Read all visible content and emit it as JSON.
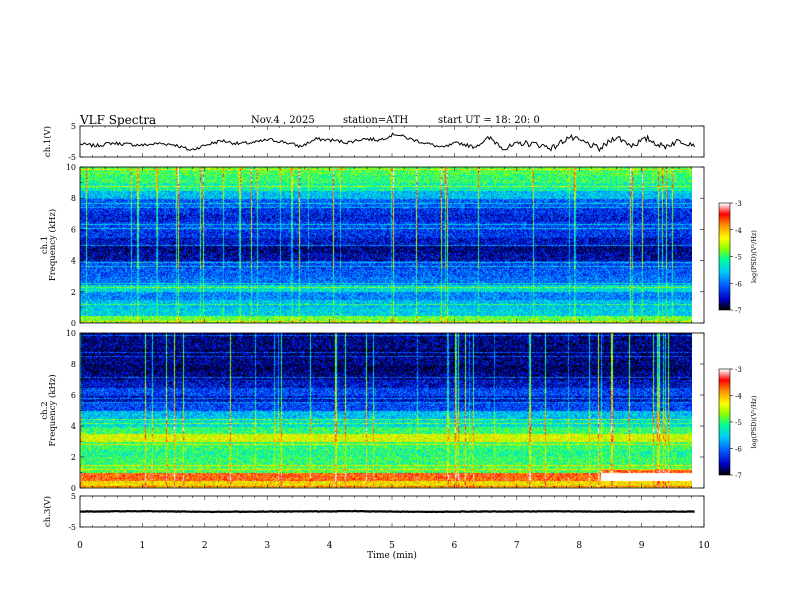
{
  "header": {
    "title": "VLF  Spectra",
    "date": "Nov.4  , 2025",
    "station": "station=ATH",
    "start": "start  UT  =   18: 20: 0"
  },
  "chart_data": {
    "type": "heatmap",
    "title": "VLF  Spectra",
    "xlabel": "Time  (min)",
    "xlim": [
      0,
      10
    ],
    "xticks": [
      "0",
      "1",
      "2",
      "3",
      "4",
      "5",
      "6",
      "7",
      "8",
      "9",
      "10"
    ],
    "panels": [
      {
        "kind": "waveform",
        "ylabel": "ch.1(V)",
        "ylim": [
          -5,
          5
        ],
        "yticks": [
          "5",
          "-5"
        ],
        "y_values": [
          -0.8,
          -1.4,
          -0.5,
          -0.9,
          -1.2,
          -0.6,
          -1.0,
          -2.8,
          -1.1,
          0.3,
          -0.7,
          -0.4,
          0.6,
          -0.2,
          -1.6,
          0.8,
          0.4,
          -0.3,
          0.9,
          0.5,
          2.5,
          0.7,
          -0.6,
          -2.0,
          -0.4,
          -1.8,
          1.1,
          -2.3,
          -0.5,
          -0.9,
          -2.1,
          1.4,
          -0.3,
          -2.5,
          1.6,
          -1.2,
          0.9,
          -1.7,
          0.2,
          -0.8
        ]
      },
      {
        "kind": "spectrogram",
        "ylabel": "ch.1\nFrequency (kHz)",
        "ylim": [
          0,
          10
        ],
        "yticks": [
          "0",
          "2",
          "4",
          "6",
          "8",
          "10"
        ],
        "freq_khz": [
          0.25,
          0.75,
          1.25,
          1.75,
          2.25,
          2.75,
          3.25,
          3.75,
          4.25,
          4.75,
          5.25,
          5.75,
          6.25,
          6.75,
          7.25,
          7.75,
          8.25,
          8.75,
          9.25,
          9.75
        ],
        "log_psd_profile": [
          -4.8,
          -5.5,
          -5.6,
          -5.9,
          -5.4,
          -6.0,
          -6.1,
          -6.2,
          -6.6,
          -6.7,
          -6.5,
          -6.3,
          -6.2,
          -6.4,
          -6.3,
          -6.1,
          -5.6,
          -5.2,
          -5.0,
          -4.9
        ],
        "colorbar": {
          "label": "log(PSD)(V²/Hz)",
          "range": [
            -7,
            -3
          ],
          "ticks": [
            "-3",
            "-4",
            "-5",
            "-6",
            "-7"
          ]
        }
      },
      {
        "kind": "spectrogram",
        "ylabel": "ch.2\nFrequency (kHz)",
        "ylim": [
          0,
          10
        ],
        "yticks": [
          "0",
          "2",
          "4",
          "6",
          "8",
          "10"
        ],
        "freq_khz": [
          0.25,
          0.75,
          1.25,
          1.75,
          2.25,
          2.75,
          3.25,
          3.75,
          4.25,
          4.75,
          5.25,
          5.75,
          6.25,
          6.75,
          7.25,
          7.75,
          8.25,
          8.75,
          9.25,
          9.75
        ],
        "log_psd_profile": [
          -4.2,
          -3.6,
          -4.9,
          -5.0,
          -5.1,
          -5.0,
          -4.4,
          -5.0,
          -5.4,
          -5.6,
          -6.2,
          -6.5,
          -6.2,
          -6.5,
          -6.7,
          -6.8,
          -6.7,
          -6.8,
          -6.7,
          -6.7
        ],
        "colorbar": {
          "label": "log(PSD)(V²/Hz)",
          "range": [
            -7,
            -3
          ],
          "ticks": [
            "-3",
            "-4",
            "-5",
            "-6",
            "-7"
          ]
        }
      },
      {
        "kind": "waveform",
        "ylabel": "ch.3(V)",
        "ylim": [
          -5,
          5
        ],
        "yticks": [
          "5",
          "-5"
        ],
        "y_values": [
          0.0,
          0.1,
          -0.1,
          0.0,
          0.1,
          -0.1,
          0.0,
          0.05,
          -0.05,
          0.0
        ]
      }
    ]
  },
  "colors": {
    "scale": [
      "#000000",
      "#0000c8",
      "#0064ff",
      "#00c8ff",
      "#00ff96",
      "#8cff00",
      "#ffff00",
      "#ff8c00",
      "#ff0000",
      "#ffffff"
    ]
  }
}
